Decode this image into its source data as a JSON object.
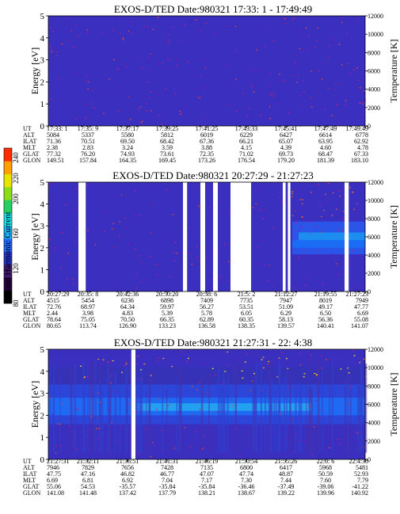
{
  "colorbar": {
    "title": "Second Harmonic Current",
    "tick_labels": [
      "80",
      "120",
      "160",
      "200",
      "220",
      "240"
    ],
    "colors": [
      "#000000",
      "#2a0040",
      "#3f1a6e",
      "#2233c8",
      "#1e66ff",
      "#19aef0",
      "#17e0e8",
      "#24d060",
      "#8cdc18",
      "#e6e400",
      "#ff9f00",
      "#ff2a00"
    ]
  },
  "chart_data": [
    {
      "type": "heatmap",
      "title": "EXOS-D/TED   Date:980321  17:33: 1 - 17:49:49",
      "ylabel": "Energy [eV]",
      "y2label": "Temperature [K]",
      "ylim": [
        0,
        5
      ],
      "y2lim": [
        0,
        12000
      ],
      "yticks": [
        "0",
        "1",
        "2",
        "3",
        "4",
        "5"
      ],
      "y2ticks": [
        "0",
        "2000",
        "4000",
        "6000",
        "8000",
        "10000",
        "12000"
      ],
      "gaps": [],
      "row_labels": [
        "UT",
        "ALT",
        "ILAT",
        "MLT",
        "GLAT",
        "GLON"
      ],
      "columns": [
        [
          "17:33: 1",
          "5084",
          "71.36",
          "2.38",
          "77.32",
          "149.51"
        ],
        [
          "17:35: 9",
          "5337",
          "70.51",
          "2.83",
          "76.20",
          "157.84"
        ],
        [
          "17:37:17",
          "5580",
          "69.50",
          "3.24",
          "74.93",
          "164.35"
        ],
        [
          "17:39:25",
          "5812",
          "68.42",
          "3.59",
          "73.61",
          "169.45"
        ],
        [
          "17:41:25",
          "6019",
          "67.36",
          "3.88",
          "72.35",
          "173.26"
        ],
        [
          "17:43:33",
          "6229",
          "66.21",
          "4.15",
          "71.02",
          "176.54"
        ],
        [
          "17:45:41",
          "6427",
          "65.07",
          "4.39",
          "69.73",
          "179.20"
        ],
        [
          "17:47:49",
          "6614",
          "63.95",
          "4.60",
          "68.47",
          "181.39"
        ],
        [
          "17:49:49",
          "6778",
          "62.92",
          "4.78",
          "67.33",
          "183.10"
        ]
      ]
    },
    {
      "type": "heatmap",
      "title": "EXOS-D/TED   Date:980321  20:27:29 - 21:27:23",
      "ylabel": "Energy [eV]",
      "y2label": "Temperature [K]",
      "ylim": [
        0,
        5
      ],
      "y2lim": [
        0,
        12000
      ],
      "yticks": [
        "0",
        "1",
        "2",
        "3",
        "4",
        "5"
      ],
      "y2ticks": [
        "0",
        "2000",
        "4000",
        "6000",
        "8000",
        "10000",
        "12000"
      ],
      "gaps": [
        [
          0.095,
          0.118
        ],
        [
          0.425,
          0.438
        ],
        [
          0.48,
          0.495
        ],
        [
          0.52,
          0.535
        ],
        [
          0.575,
          0.64
        ],
        [
          0.74,
          0.749
        ],
        [
          0.756,
          0.764
        ],
        [
          0.935,
          0.948
        ]
      ],
      "row_labels": [
        "UT",
        "ALT",
        "ILAT",
        "MLT",
        "GLAT",
        "GLON"
      ],
      "columns": [
        [
          "20:27:29",
          "4515",
          "72.76",
          "2.44",
          "78.64",
          "80.65"
        ],
        [
          "20:35: 8",
          "5454",
          "68.97",
          "3.98",
          "75.05",
          "113.74"
        ],
        [
          "20:42:36",
          "6236",
          "64.34",
          "4.83",
          "70.50",
          "126.90"
        ],
        [
          "20:50:20",
          "6898",
          "59.97",
          "5.39",
          "66.35",
          "133.23"
        ],
        [
          "20:58: 6",
          "7409",
          "56.27",
          "5.78",
          "62.89",
          "136.58"
        ],
        [
          "21:5: 2",
          "7735",
          "53.51",
          "6.05",
          "60.35",
          "138.35"
        ],
        [
          "21:12:27",
          "7947",
          "51.09",
          "6.29",
          "58.13",
          "139.57"
        ],
        [
          "21:19:55",
          "8019",
          "49.17",
          "6.50",
          "56.36",
          "140.41"
        ],
        [
          "21:27:23",
          "7949",
          "47.77",
          "6.69",
          "55.08",
          "141.07"
        ]
      ]
    },
    {
      "type": "heatmap",
      "title": "EXOS-D/TED   Date:980321  21:27:31 - 22: 4:38",
      "ylabel": "Energy [eV]",
      "y2label": "Temperature [K]",
      "ylim": [
        0,
        5
      ],
      "y2lim": [
        0,
        12000
      ],
      "yticks": [
        "0",
        "1",
        "2",
        "3",
        "4",
        "5"
      ],
      "y2ticks": [
        "0",
        "2000",
        "4000",
        "6000",
        "8000",
        "10000",
        "12000"
      ],
      "gaps": [
        [
          0.262,
          0.275
        ]
      ],
      "row_labels": [
        "UT",
        "ALT",
        "ILAT",
        "MLT",
        "GLAT",
        "GLON"
      ],
      "columns": [
        [
          "21:27:31",
          "7946",
          "47.75",
          "6.69",
          "55.06",
          "141.08"
        ],
        [
          "21:32:11",
          "7829",
          "47.16",
          "6.81",
          "54.53",
          "141.48"
        ],
        [
          "21:36:51",
          "7656",
          "46.82",
          "6.92",
          "-35.57",
          "137.42"
        ],
        [
          "21:41:31",
          "7428",
          "46.77",
          "7.04",
          "-35.84",
          "137.79"
        ],
        [
          "21:46:19",
          "7135",
          "47.07",
          "7.17",
          "-35.84",
          "138.21"
        ],
        [
          "21:50:54",
          "6800",
          "47.74",
          "7.30",
          "-36.46",
          "138.67"
        ],
        [
          "21:55:26",
          "6417",
          "48.87",
          "7.44",
          "-37.49",
          "139.22"
        ],
        [
          "22:0: 6",
          "5968",
          "50.59",
          "7.60",
          "-39.06",
          "139.96"
        ],
        [
          "22:4:38",
          "5481",
          "52.93",
          "7.79",
          "-41.22",
          "140.92"
        ]
      ]
    }
  ]
}
